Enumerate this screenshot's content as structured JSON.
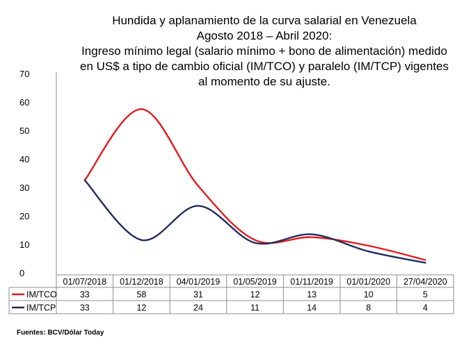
{
  "chart_data": {
    "type": "line",
    "title_lines": [
      "Hundida y aplanamiento de la curva salarial en Venezuela",
      "Agosto 2018 – Abril 2020:",
      "Ingreso mínimo legal (salario mínimo + bono de alimentación) medido",
      "en US$ a tipo de cambio oficial (IM/TCO) y paralelo (IM/TCP) vigentes",
      "al momento de su ajuste."
    ],
    "categories": [
      "01/07/2018",
      "01/12/2018",
      "04/01/2019",
      "01/05/2019",
      "01/11/2019",
      "01/01/2020",
      "27/04/2020"
    ],
    "series": [
      {
        "name": "IM/TCO",
        "color": "#e31a1c",
        "values": [
          33,
          58,
          31,
          12,
          13,
          10,
          5
        ]
      },
      {
        "name": "IM/TCP",
        "color": "#1f2d5c",
        "values": [
          33,
          12,
          24,
          11,
          14,
          8,
          4
        ]
      }
    ],
    "ylim": [
      0,
      70
    ],
    "yticks": [
      0,
      10,
      20,
      30,
      40,
      50,
      60,
      70
    ],
    "xlabel": "",
    "ylabel": "",
    "grid": false,
    "legend": "table-below"
  },
  "footer": {
    "source": "Fuentes: BCV/Dólar Today"
  }
}
